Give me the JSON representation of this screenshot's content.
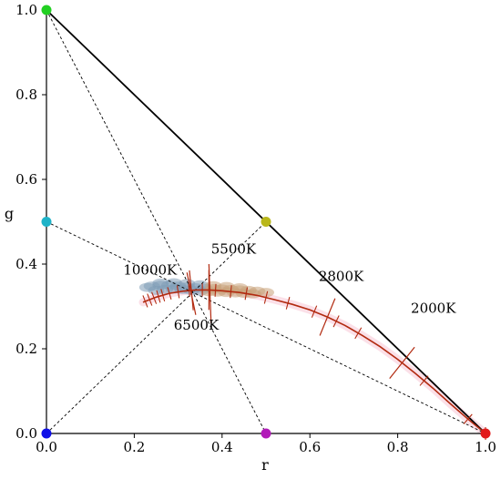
{
  "chart_data": {
    "type": "scatter",
    "title": "",
    "xlabel": "r",
    "ylabel": "g",
    "xlim": [
      0.0,
      1.0
    ],
    "ylim": [
      0.0,
      1.0
    ],
    "x_ticks": [
      "0.0",
      "0.2",
      "0.4",
      "0.6",
      "0.8",
      "1.0"
    ],
    "y_ticks": [
      "0.0",
      "0.2",
      "0.4",
      "0.6",
      "0.8",
      "1.0"
    ],
    "grid": false,
    "colors": {
      "locus": "#b22a10",
      "cloud_cool": "#7f9db6",
      "cloud_warm": "#c9a27a",
      "glow": "#f8c6d6"
    },
    "primaries": [
      {
        "r": 0.0,
        "g": 1.0,
        "color": "#22d022"
      },
      {
        "r": 0.0,
        "g": 0.5,
        "color": "#1fb3c8"
      },
      {
        "r": 0.5,
        "g": 0.5,
        "color": "#b9b71a"
      },
      {
        "r": 0.0,
        "g": 0.0,
        "color": "#1010e8"
      },
      {
        "r": 0.5,
        "g": 0.0,
        "color": "#b21ab9"
      },
      {
        "r": 1.0,
        "g": 0.0,
        "color": "#e21a1a"
      }
    ],
    "triangle": [
      [
        0.0,
        0.0
      ],
      [
        0.0,
        1.0
      ],
      [
        1.0,
        0.0
      ]
    ],
    "dashed_lines": [
      [
        [
          0.0,
          1.0
        ],
        [
          0.5,
          0.0
        ]
      ],
      [
        [
          0.0,
          0.5
        ],
        [
          1.0,
          0.0
        ]
      ],
      [
        [
          0.0,
          0.0
        ],
        [
          0.5,
          0.5
        ]
      ]
    ],
    "locus": [
      [
        0.22,
        0.31
      ],
      [
        0.25,
        0.322
      ],
      [
        0.28,
        0.331
      ],
      [
        0.31,
        0.336
      ],
      [
        0.34,
        0.339
      ],
      [
        0.37,
        0.339
      ],
      [
        0.4,
        0.337
      ],
      [
        0.44,
        0.333
      ],
      [
        0.48,
        0.326
      ],
      [
        0.52,
        0.316
      ],
      [
        0.56,
        0.305
      ],
      [
        0.6,
        0.292
      ],
      [
        0.64,
        0.275
      ],
      [
        0.68,
        0.255
      ],
      [
        0.72,
        0.231
      ],
      [
        0.76,
        0.205
      ],
      [
        0.8,
        0.175
      ],
      [
        0.84,
        0.142
      ],
      [
        0.88,
        0.107
      ],
      [
        0.92,
        0.07
      ],
      [
        0.96,
        0.034
      ],
      [
        1.0,
        0.0
      ]
    ],
    "minor_ticks_r": [
      0.215,
      0.225,
      0.235,
      0.245,
      0.255,
      0.265,
      0.28,
      0.3,
      0.325,
      0.355,
      0.385,
      0.42,
      0.455,
      0.5,
      0.55,
      0.61,
      0.66,
      0.71,
      0.86,
      0.96
    ],
    "major_ticks": [
      {
        "r": 0.33,
        "label": "10000K",
        "label_r": 0.175,
        "label_g": 0.375
      },
      {
        "r": 0.37,
        "label": "6500K",
        "label_r": 0.29,
        "label_g": 0.245
      },
      {
        "r": 0.64,
        "label": "2800K",
        "label_r": 0.62,
        "label_g": 0.36
      },
      {
        "r": 0.81,
        "label": "2000K",
        "label_r": 0.83,
        "label_g": 0.285
      }
    ],
    "extra_label": {
      "label": "5500K",
      "label_r": 0.375,
      "label_g": 0.425
    },
    "extra_line": [
      [
        0.37,
        0.4
      ],
      [
        0.375,
        0.26
      ]
    ],
    "extra_line2": [
      [
        0.32,
        0.38
      ],
      [
        0.34,
        0.28
      ]
    ],
    "cloud": [
      [
        0.23,
        0.345
      ],
      [
        0.24,
        0.348
      ],
      [
        0.26,
        0.35
      ],
      [
        0.28,
        0.35
      ],
      [
        0.3,
        0.348
      ],
      [
        0.32,
        0.346
      ],
      [
        0.34,
        0.344
      ],
      [
        0.36,
        0.343
      ],
      [
        0.38,
        0.342
      ],
      [
        0.4,
        0.341
      ],
      [
        0.42,
        0.34
      ],
      [
        0.44,
        0.339
      ],
      [
        0.46,
        0.338
      ],
      [
        0.48,
        0.336
      ],
      [
        0.5,
        0.333
      ],
      [
        0.25,
        0.338
      ],
      [
        0.27,
        0.34
      ],
      [
        0.29,
        0.341
      ],
      [
        0.31,
        0.34
      ],
      [
        0.33,
        0.338
      ],
      [
        0.35,
        0.336
      ],
      [
        0.37,
        0.335
      ],
      [
        0.39,
        0.334
      ],
      [
        0.41,
        0.333
      ],
      [
        0.43,
        0.332
      ],
      [
        0.45,
        0.331
      ],
      [
        0.47,
        0.33
      ],
      [
        0.26,
        0.355
      ],
      [
        0.29,
        0.356
      ],
      [
        0.32,
        0.354
      ],
      [
        0.35,
        0.351
      ],
      [
        0.38,
        0.349
      ],
      [
        0.41,
        0.347
      ],
      [
        0.44,
        0.344
      ]
    ]
  }
}
